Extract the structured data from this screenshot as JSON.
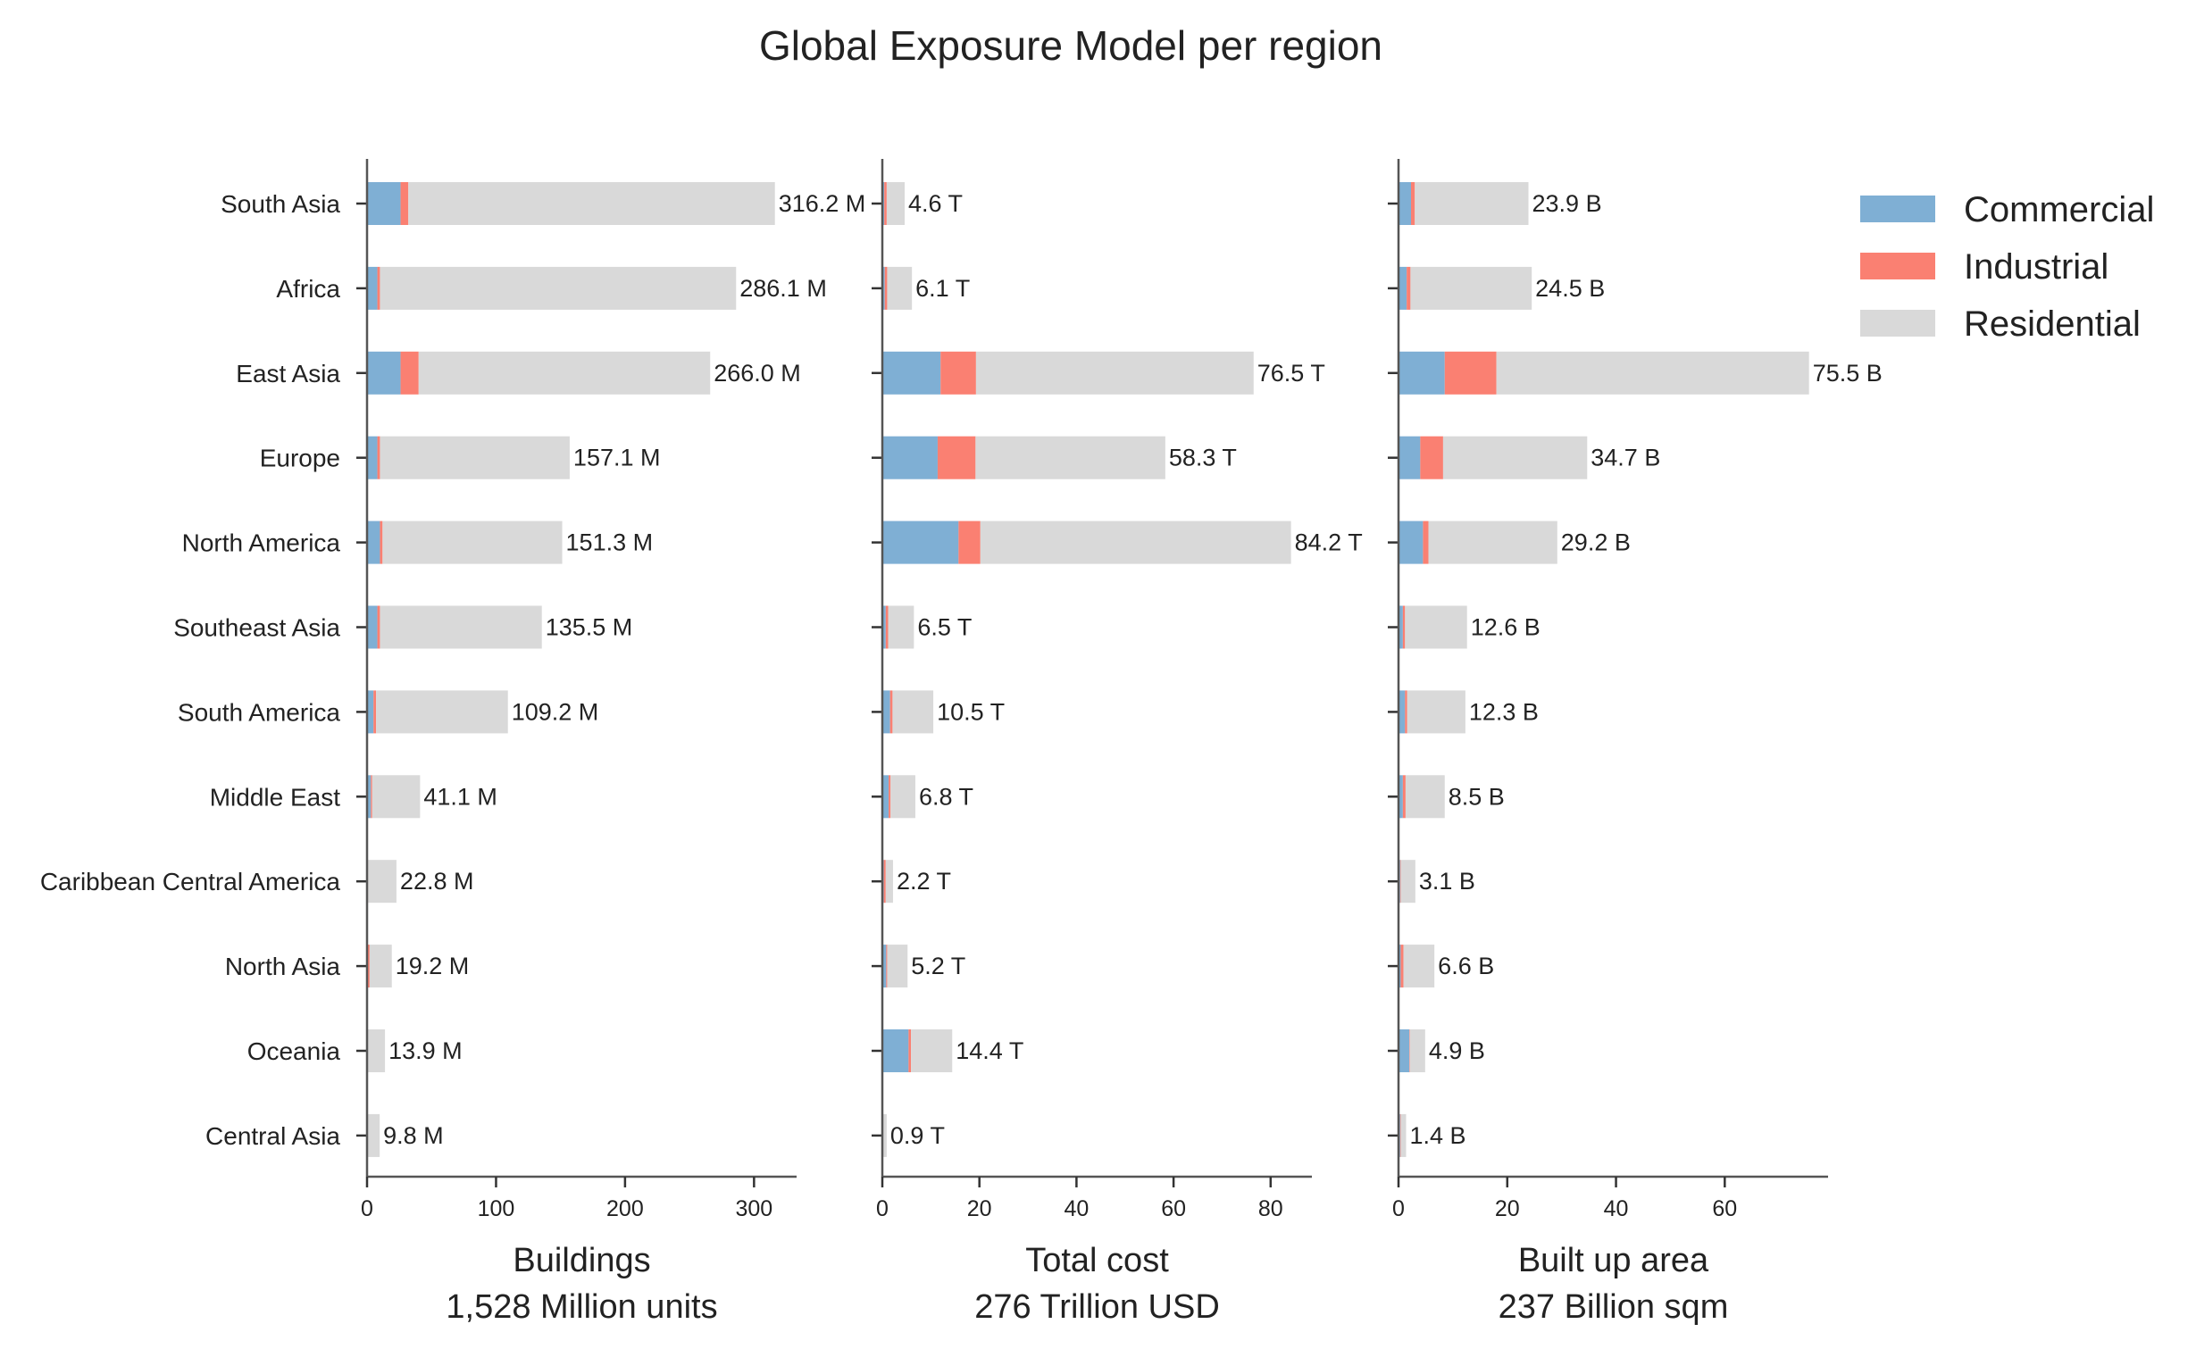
{
  "chart_data": {
    "type": "bar",
    "orientation": "horizontal",
    "stacked": true,
    "title": "Global Exposure Model per region",
    "categories": [
      "South Asia",
      "Africa",
      "East Asia",
      "Europe",
      "North America",
      "Southeast Asia",
      "South America",
      "Middle East",
      "Caribbean Central America",
      "North Asia",
      "Oceania",
      "Central Asia"
    ],
    "legend": {
      "placement": "top-right",
      "entries": [
        {
          "name": "Commercial",
          "color": "#7fafd4"
        },
        {
          "name": "Industrial",
          "color": "#fa8072"
        },
        {
          "name": "Residential",
          "color": "#d9d9d9"
        }
      ]
    },
    "panels": [
      {
        "xlabel": "Buildings",
        "subtitle": "1,528 Million units",
        "xlim": [
          0,
          333
        ],
        "ticks": [
          0,
          100,
          200,
          300
        ],
        "totals": [
          316.2,
          286.1,
          266.0,
          157.1,
          151.3,
          135.5,
          109.2,
          41.1,
          22.8,
          19.2,
          13.9,
          9.8
        ],
        "labels": [
          "316.2 M",
          "286.1 M",
          "266.0 M",
          "157.1 M",
          "151.3 M",
          "135.5 M",
          "109.2 M",
          "41.1 M",
          "22.8 M",
          "19.2 M",
          "13.9 M",
          "9.8 M"
        ],
        "series": [
          {
            "name": "Commercial",
            "values": [
              26,
              8,
              26,
              8,
              10,
              8,
              5,
              3,
              0.5,
              0.5,
              0.5,
              0.3
            ]
          },
          {
            "name": "Industrial",
            "values": [
              6,
              2,
              14,
              2,
              2,
              2,
              2,
              1,
              0.3,
              1.5,
              0.2,
              0.2
            ]
          },
          {
            "name": "Residential",
            "values": [
              284.2,
              276.1,
              226.0,
              147.1,
              139.3,
              125.5,
              102.2,
              37.1,
              22.0,
              17.2,
              13.2,
              9.3
            ]
          }
        ]
      },
      {
        "xlabel": "Total cost",
        "subtitle": "276 Trillion USD",
        "xlim": [
          0,
          88.5
        ],
        "ticks": [
          0,
          20,
          40,
          60,
          80
        ],
        "totals": [
          4.6,
          6.1,
          76.5,
          58.3,
          84.2,
          6.5,
          10.5,
          6.8,
          2.2,
          5.2,
          14.4,
          0.9
        ],
        "labels": [
          "4.6 T",
          "6.1 T",
          "76.5 T",
          "58.3 T",
          "84.2 T",
          "6.5 T",
          "10.5 T",
          "6.8 T",
          "2.2 T",
          "5.2 T",
          "14.4 T",
          "0.9 T"
        ],
        "series": [
          {
            "name": "Commercial",
            "values": [
              0.4,
              0.5,
              12,
              11.4,
              15.7,
              0.7,
              1.6,
              1.3,
              0.3,
              0.8,
              5.4,
              0.1
            ]
          },
          {
            "name": "Industrial",
            "values": [
              0.5,
              0.5,
              7.3,
              7.8,
              4.5,
              0.5,
              0.5,
              0.4,
              0.4,
              0.2,
              0.5,
              0.1
            ]
          },
          {
            "name": "Residential",
            "values": [
              3.7,
              5.1,
              57.2,
              39.1,
              64.0,
              5.3,
              8.4,
              5.1,
              1.5,
              4.2,
              8.5,
              0.7
            ]
          }
        ]
      },
      {
        "xlabel": "Built up area",
        "subtitle": "237 Billion sqm",
        "xlim": [
          0,
          79
        ],
        "ticks": [
          0,
          20,
          40,
          60
        ],
        "totals": [
          23.9,
          24.5,
          75.5,
          34.7,
          29.2,
          12.6,
          12.3,
          8.5,
          3.1,
          6.6,
          4.9,
          1.4
        ],
        "labels": [
          "23.9 B",
          "24.5 B",
          "75.5 B",
          "34.7 B",
          "29.2 B",
          "12.6 B",
          "12.3 B",
          "8.5 B",
          "3.1 B",
          "6.6 B",
          "4.9 B",
          "1.4 B"
        ],
        "series": [
          {
            "name": "Commercial",
            "values": [
              2.3,
              1.5,
              8.5,
              4.0,
              4.5,
              0.8,
              1.2,
              0.8,
              0.3,
              0.4,
              2.0,
              0.3
            ]
          },
          {
            "name": "Industrial",
            "values": [
              0.7,
              0.7,
              9.5,
              4.2,
              1.0,
              0.4,
              0.4,
              0.5,
              0.1,
              0.5,
              0.1,
              0.1
            ]
          },
          {
            "name": "Residential",
            "values": [
              20.9,
              22.3,
              57.5,
              26.5,
              23.7,
              11.4,
              10.7,
              7.2,
              2.7,
              5.7,
              2.8,
              1.0
            ]
          }
        ]
      }
    ]
  }
}
